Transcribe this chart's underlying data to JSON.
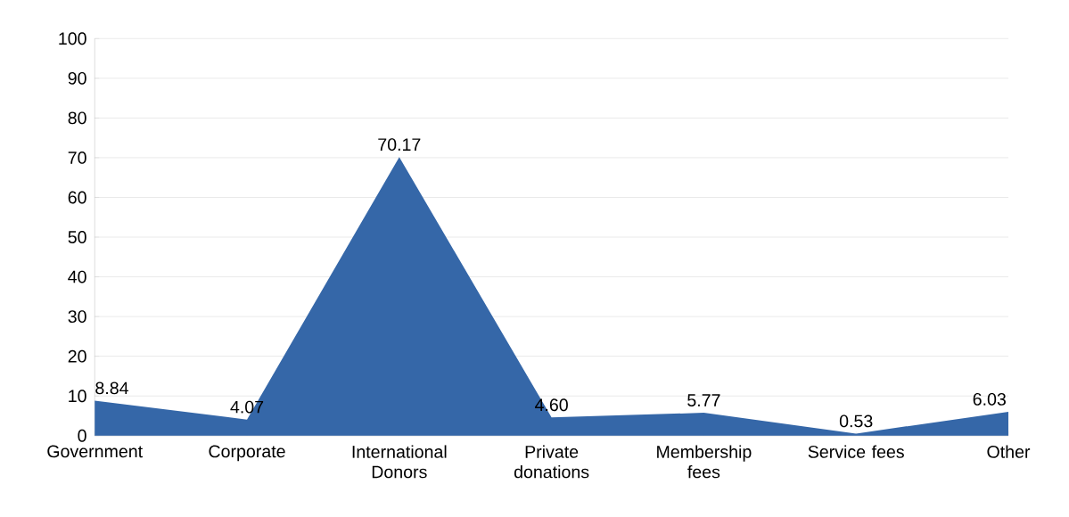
{
  "chart_data": {
    "type": "area",
    "categories": [
      "Government",
      "Corporate",
      "International Donors",
      "Private donations",
      "Membership fees",
      "Service fees",
      "Other"
    ],
    "values": [
      8.84,
      4.07,
      70.17,
      4.6,
      5.77,
      0.53,
      6.03
    ],
    "value_labels": [
      "8.84",
      "4.07",
      "70.17",
      "4.60",
      "5.77",
      "0.53",
      "6.03"
    ],
    "color": "#3567a8",
    "ylim": [
      0,
      100
    ],
    "yticks": [
      0,
      10,
      20,
      30,
      40,
      50,
      60,
      70,
      80,
      90,
      100
    ],
    "grid": "y"
  }
}
